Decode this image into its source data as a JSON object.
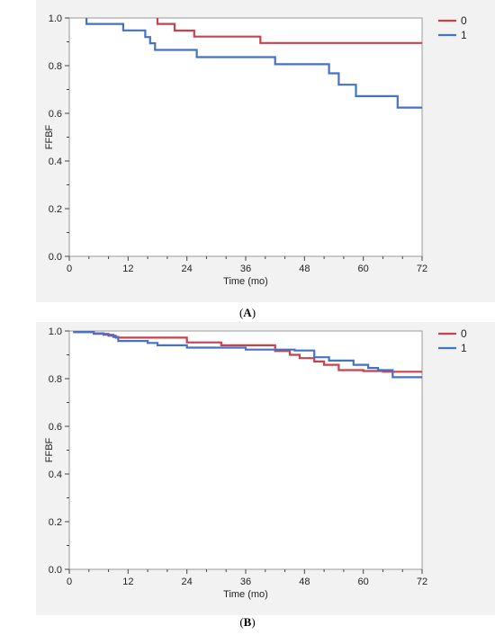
{
  "chart_data": [
    {
      "type": "line",
      "step": true,
      "panel_label": "A",
      "ylabel": "FFBF",
      "xlabel": "Time (mo)",
      "xlim": [
        0,
        72
      ],
      "ylim": [
        0,
        1
      ],
      "x_ticks": [
        "0",
        "12",
        "24",
        "36",
        "48",
        "60",
        "72"
      ],
      "y_ticks": [
        "0.0",
        "0.2",
        "0.4",
        "0.6",
        "0.8",
        "1.0"
      ],
      "grid": false,
      "legend": "top-right",
      "series": [
        {
          "name": "0",
          "color": "#c8424e",
          "points": [
            [
              18,
              1.0
            ],
            [
              18,
              0.975
            ],
            [
              21.5,
              0.975
            ],
            [
              21.5,
              0.947
            ],
            [
              25.5,
              0.947
            ],
            [
              25.5,
              0.922
            ],
            [
              39,
              0.922
            ],
            [
              39,
              0.895
            ],
            [
              72,
              0.895
            ]
          ]
        },
        {
          "name": "1",
          "color": "#4472c4",
          "points": [
            [
              3.5,
              1.0
            ],
            [
              3.5,
              0.975
            ],
            [
              11,
              0.975
            ],
            [
              11,
              0.948
            ],
            [
              15.5,
              0.948
            ],
            [
              15.5,
              0.92
            ],
            [
              16.5,
              0.92
            ],
            [
              16.5,
              0.894
            ],
            [
              17.5,
              0.894
            ],
            [
              17.5,
              0.866
            ],
            [
              26,
              0.866
            ],
            [
              26,
              0.836
            ],
            [
              42,
              0.836
            ],
            [
              42,
              0.806
            ],
            [
              53,
              0.806
            ],
            [
              53,
              0.768
            ],
            [
              55,
              0.768
            ],
            [
              55,
              0.72
            ],
            [
              58.5,
              0.72
            ],
            [
              58.5,
              0.672
            ],
            [
              67,
              0.672
            ],
            [
              67,
              0.624
            ],
            [
              72,
              0.624
            ]
          ]
        }
      ]
    },
    {
      "type": "line",
      "step": true,
      "panel_label": "B",
      "ylabel": "FFBF",
      "xlabel": "Time (mo)",
      "xlim": [
        0,
        72
      ],
      "ylim": [
        0,
        1
      ],
      "x_ticks": [
        "0",
        "12",
        "24",
        "36",
        "48",
        "60",
        "72"
      ],
      "y_ticks": [
        "0.0",
        "0.2",
        "0.4",
        "0.6",
        "0.8",
        "1.0"
      ],
      "grid": false,
      "legend": "top-right",
      "series": [
        {
          "name": "0",
          "color": "#c8424e",
          "points": [
            [
              1,
              1.0
            ],
            [
              1,
              0.995
            ],
            [
              5,
              0.995
            ],
            [
              5,
              0.988
            ],
            [
              8,
              0.988
            ],
            [
              8,
              0.98
            ],
            [
              9.5,
              0.98
            ],
            [
              9.5,
              0.972
            ],
            [
              24,
              0.972
            ],
            [
              24,
              0.952
            ],
            [
              31,
              0.952
            ],
            [
              31,
              0.94
            ],
            [
              42,
              0.94
            ],
            [
              42,
              0.916
            ],
            [
              45,
              0.916
            ],
            [
              45,
              0.9
            ],
            [
              47,
              0.9
            ],
            [
              47,
              0.886
            ],
            [
              50,
              0.886
            ],
            [
              50,
              0.872
            ],
            [
              52,
              0.872
            ],
            [
              52,
              0.858
            ],
            [
              55,
              0.858
            ],
            [
              55,
              0.836
            ],
            [
              60,
              0.836
            ],
            [
              60,
              0.832
            ],
            [
              64,
              0.832
            ],
            [
              64,
              0.829
            ],
            [
              72,
              0.829
            ]
          ]
        },
        {
          "name": "1",
          "color": "#4472c4",
          "points": [
            [
              1,
              1.0
            ],
            [
              1,
              0.996
            ],
            [
              5,
              0.996
            ],
            [
              5,
              0.99
            ],
            [
              7,
              0.99
            ],
            [
              7,
              0.984
            ],
            [
              9,
              0.984
            ],
            [
              9,
              0.975
            ],
            [
              10,
              0.975
            ],
            [
              10,
              0.958
            ],
            [
              16,
              0.958
            ],
            [
              16,
              0.95
            ],
            [
              18,
              0.95
            ],
            [
              18,
              0.94
            ],
            [
              24,
              0.94
            ],
            [
              24,
              0.93
            ],
            [
              36,
              0.93
            ],
            [
              36,
              0.922
            ],
            [
              46,
              0.922
            ],
            [
              46,
              0.918
            ],
            [
              50,
              0.918
            ],
            [
              50,
              0.89
            ],
            [
              53,
              0.89
            ],
            [
              53,
              0.876
            ],
            [
              58,
              0.876
            ],
            [
              58,
              0.858
            ],
            [
              61,
              0.858
            ],
            [
              61,
              0.845
            ],
            [
              63,
              0.845
            ],
            [
              63,
              0.836
            ],
            [
              66,
              0.836
            ],
            [
              66,
              0.806
            ],
            [
              72,
              0.806
            ]
          ]
        }
      ]
    }
  ]
}
